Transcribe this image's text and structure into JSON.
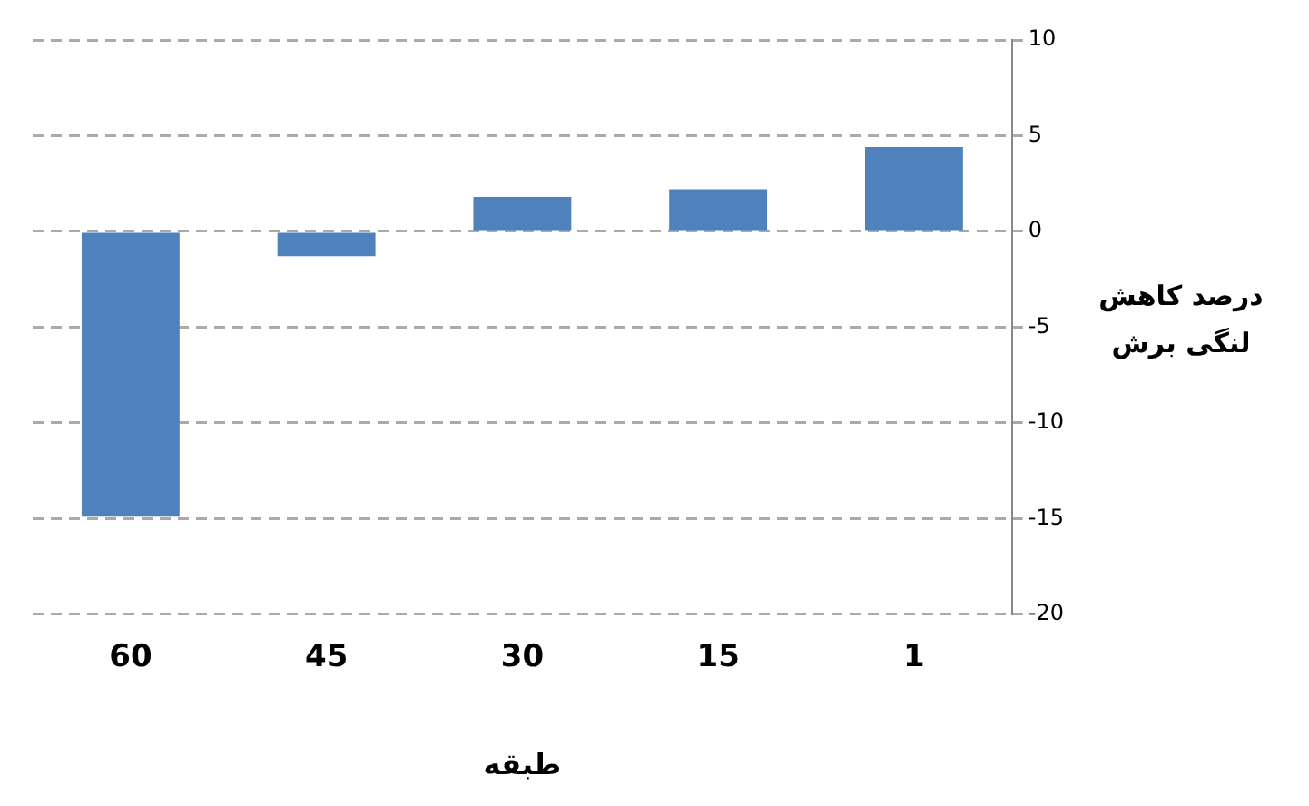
{
  "chart_data": {
    "type": "bar",
    "categories": [
      "60",
      "45",
      "30",
      "15",
      "1"
    ],
    "values": [
      -14.9,
      -1.3,
      1.8,
      2.2,
      4.4
    ],
    "color": "#4f81bd",
    "ylim": [
      -20,
      10
    ],
    "yticks": [
      -20,
      -15,
      -10,
      -5,
      0,
      5,
      10
    ],
    "grid": "y",
    "line_style": "dashed",
    "xlabel": "طبقه",
    "ylabel": "درصد کاهش لنگی برش"
  }
}
